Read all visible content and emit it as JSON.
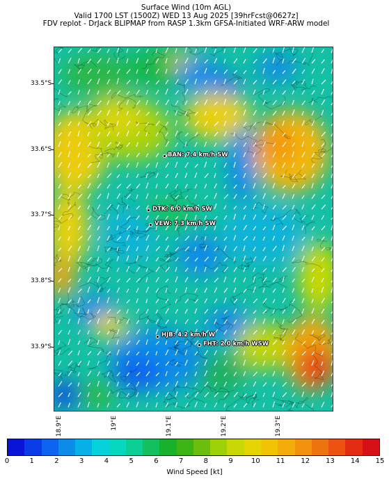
{
  "header": {
    "line1": "Surface Wind (10m AGL)",
    "line2": "Valid 1700 LST (1500Z) WED 13 Aug 2025 [39hrFcst@0627z]",
    "line3": "FDV replot - DrJack BLIPMAP from RASP 1.3km GFSA-Initiated WRF-ARW model"
  },
  "axes": {
    "latitudes": [
      "33.5°S",
      "33.6°S",
      "33.7°S",
      "33.8°S",
      "33.9°S"
    ],
    "longitudes": [
      "18.9°E",
      "19°E",
      "19.1°E",
      "19.2°E",
      "19.3°E"
    ]
  },
  "stations": [
    {
      "code": "BAN",
      "label": "BAN: 7.4 km/h SW"
    },
    {
      "code": "DTK",
      "label": "DTK: 6.0 km/h SW"
    },
    {
      "code": "VEW",
      "label": "VEW: 7.3 km/h SW"
    },
    {
      "code": "HJB",
      "label": "HJB: 4.2 km/h W"
    },
    {
      "code": "FHT",
      "label": "FHT: 2.0 km/h WSW"
    }
  ],
  "colorbar": {
    "label": "Wind Speed [kt]",
    "ticks": [
      "0",
      "1",
      "2",
      "3",
      "4",
      "5",
      "6",
      "7",
      "8",
      "9",
      "10",
      "11",
      "12",
      "13",
      "14",
      "15"
    ],
    "colors": [
      "#0a14d8",
      "#0a3ce8",
      "#0d64f0",
      "#0a8ce8",
      "#06b0e8",
      "#06d2dc",
      "#06d8c0",
      "#0ccf96",
      "#12c060",
      "#18b22a",
      "#3cb414",
      "#6cbe0e",
      "#9ed008",
      "#c8d806",
      "#e6d404",
      "#f0c404",
      "#f4ac08",
      "#f2920c",
      "#ee7410",
      "#ec5212",
      "#e42c12",
      "#d61016"
    ]
  }
}
